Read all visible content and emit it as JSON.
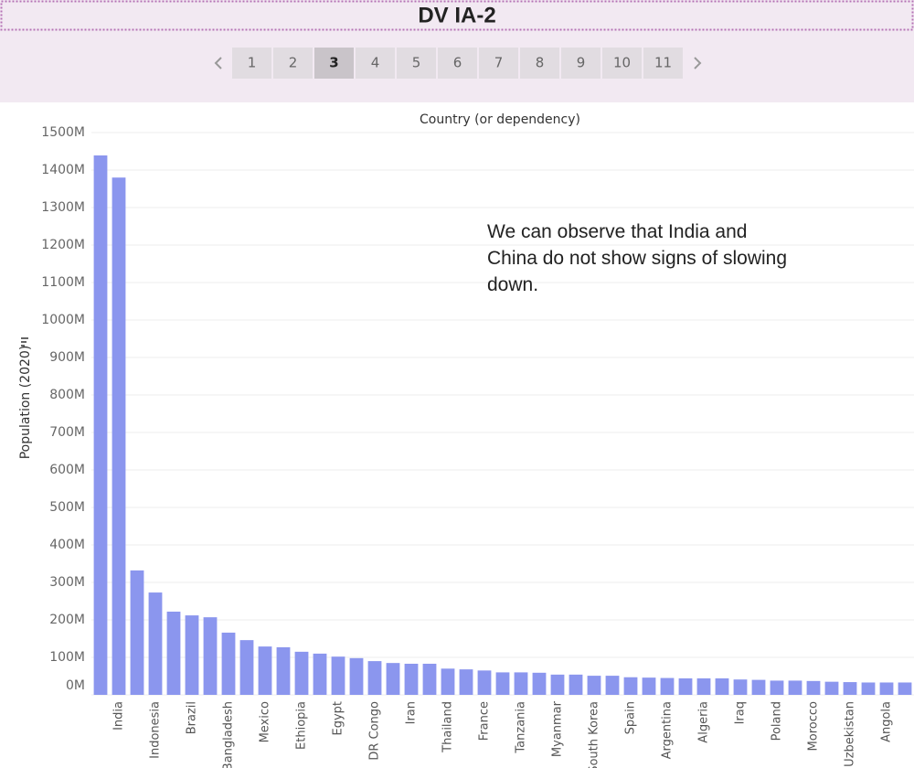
{
  "header": {
    "title": "DV IA-2"
  },
  "pagination": {
    "pages": [
      "1",
      "2",
      "3",
      "4",
      "5",
      "6",
      "7",
      "8",
      "9",
      "10",
      "11"
    ],
    "current": "3"
  },
  "chart_data": {
    "type": "bar",
    "x_label": "Country (or dependency)",
    "y_label": "Population (2020)",
    "annotation": "We can observe that India and China do not show signs of slowing down.",
    "color": "#8b96ee",
    "grid": true,
    "categories": [
      null,
      "India",
      null,
      "Indonesia",
      null,
      "Brazil",
      null,
      "Bangladesh",
      null,
      "Mexico",
      null,
      "Ethiopia",
      null,
      "Egypt",
      null,
      "DR Congo",
      null,
      "Iran",
      null,
      "Thailand",
      null,
      "France",
      null,
      "Tanzania",
      null,
      "Myanmar",
      null,
      "South Korea",
      null,
      "Spain",
      null,
      "Argentina",
      null,
      "Algeria",
      null,
      "Iraq",
      null,
      "Poland",
      null,
      "Morocco",
      null,
      "Uzbekistan",
      null,
      "Angola",
      null
    ],
    "values": [
      1439,
      1380,
      332,
      273,
      222,
      212,
      207,
      166,
      146,
      129,
      127,
      115,
      110,
      102,
      98,
      90,
      85,
      83,
      83,
      70,
      68,
      65,
      60,
      60,
      59,
      54,
      54,
      51,
      51,
      47,
      46,
      45,
      44,
      44,
      44,
      41,
      40,
      38,
      38,
      37,
      35,
      34,
      33,
      33,
      33
    ],
    "ylim": [
      0,
      1500
    ],
    "yticks": [
      {
        "value": 0,
        "label": "0M"
      },
      {
        "value": 100,
        "label": "100M"
      },
      {
        "value": 200,
        "label": "200M"
      },
      {
        "value": 300,
        "label": "300M"
      },
      {
        "value": 400,
        "label": "400M"
      },
      {
        "value": 500,
        "label": "500M"
      },
      {
        "value": 600,
        "label": "600M"
      },
      {
        "value": 700,
        "label": "700M"
      },
      {
        "value": 800,
        "label": "800M"
      },
      {
        "value": 900,
        "label": "900M"
      },
      {
        "value": 1000,
        "label": "1000M"
      },
      {
        "value": 1100,
        "label": "1100M"
      },
      {
        "value": 1200,
        "label": "1200M"
      },
      {
        "value": 1300,
        "label": "1300M"
      },
      {
        "value": 1400,
        "label": "1400M"
      },
      {
        "value": 1500,
        "label": "1500M"
      }
    ]
  }
}
